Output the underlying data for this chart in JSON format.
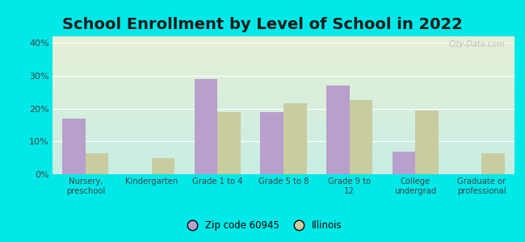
{
  "title": "School Enrollment by Level of School in 2022",
  "categories": [
    "Nursery,\npreschool",
    "Kindergarten",
    "Grade 1 to 4",
    "Grade 5 to 8",
    "Grade 9 to\n12",
    "College\nundergrad",
    "Graduate or\nprofessional"
  ],
  "zip_values": [
    17.0,
    0.0,
    29.0,
    19.0,
    27.0,
    7.0,
    0.0
  ],
  "il_values": [
    6.5,
    5.0,
    19.0,
    21.5,
    22.5,
    19.5,
    6.5
  ],
  "zip_color": "#b89fcc",
  "il_color": "#c8cc9f",
  "background_outer": "#00e8e8",
  "background_inner_top": "#e6f0d5",
  "background_inner_bottom": "#c8ede4",
  "ylim": [
    0,
    42
  ],
  "yticks": [
    0,
    10,
    20,
    30,
    40
  ],
  "ytick_labels": [
    "0%",
    "10%",
    "20%",
    "30%",
    "40%"
  ],
  "legend_zip_label": "Zip code 60945",
  "legend_il_label": "Illinois",
  "watermark": "City-Data.com",
  "title_fontsize": 14,
  "bar_width": 0.35
}
